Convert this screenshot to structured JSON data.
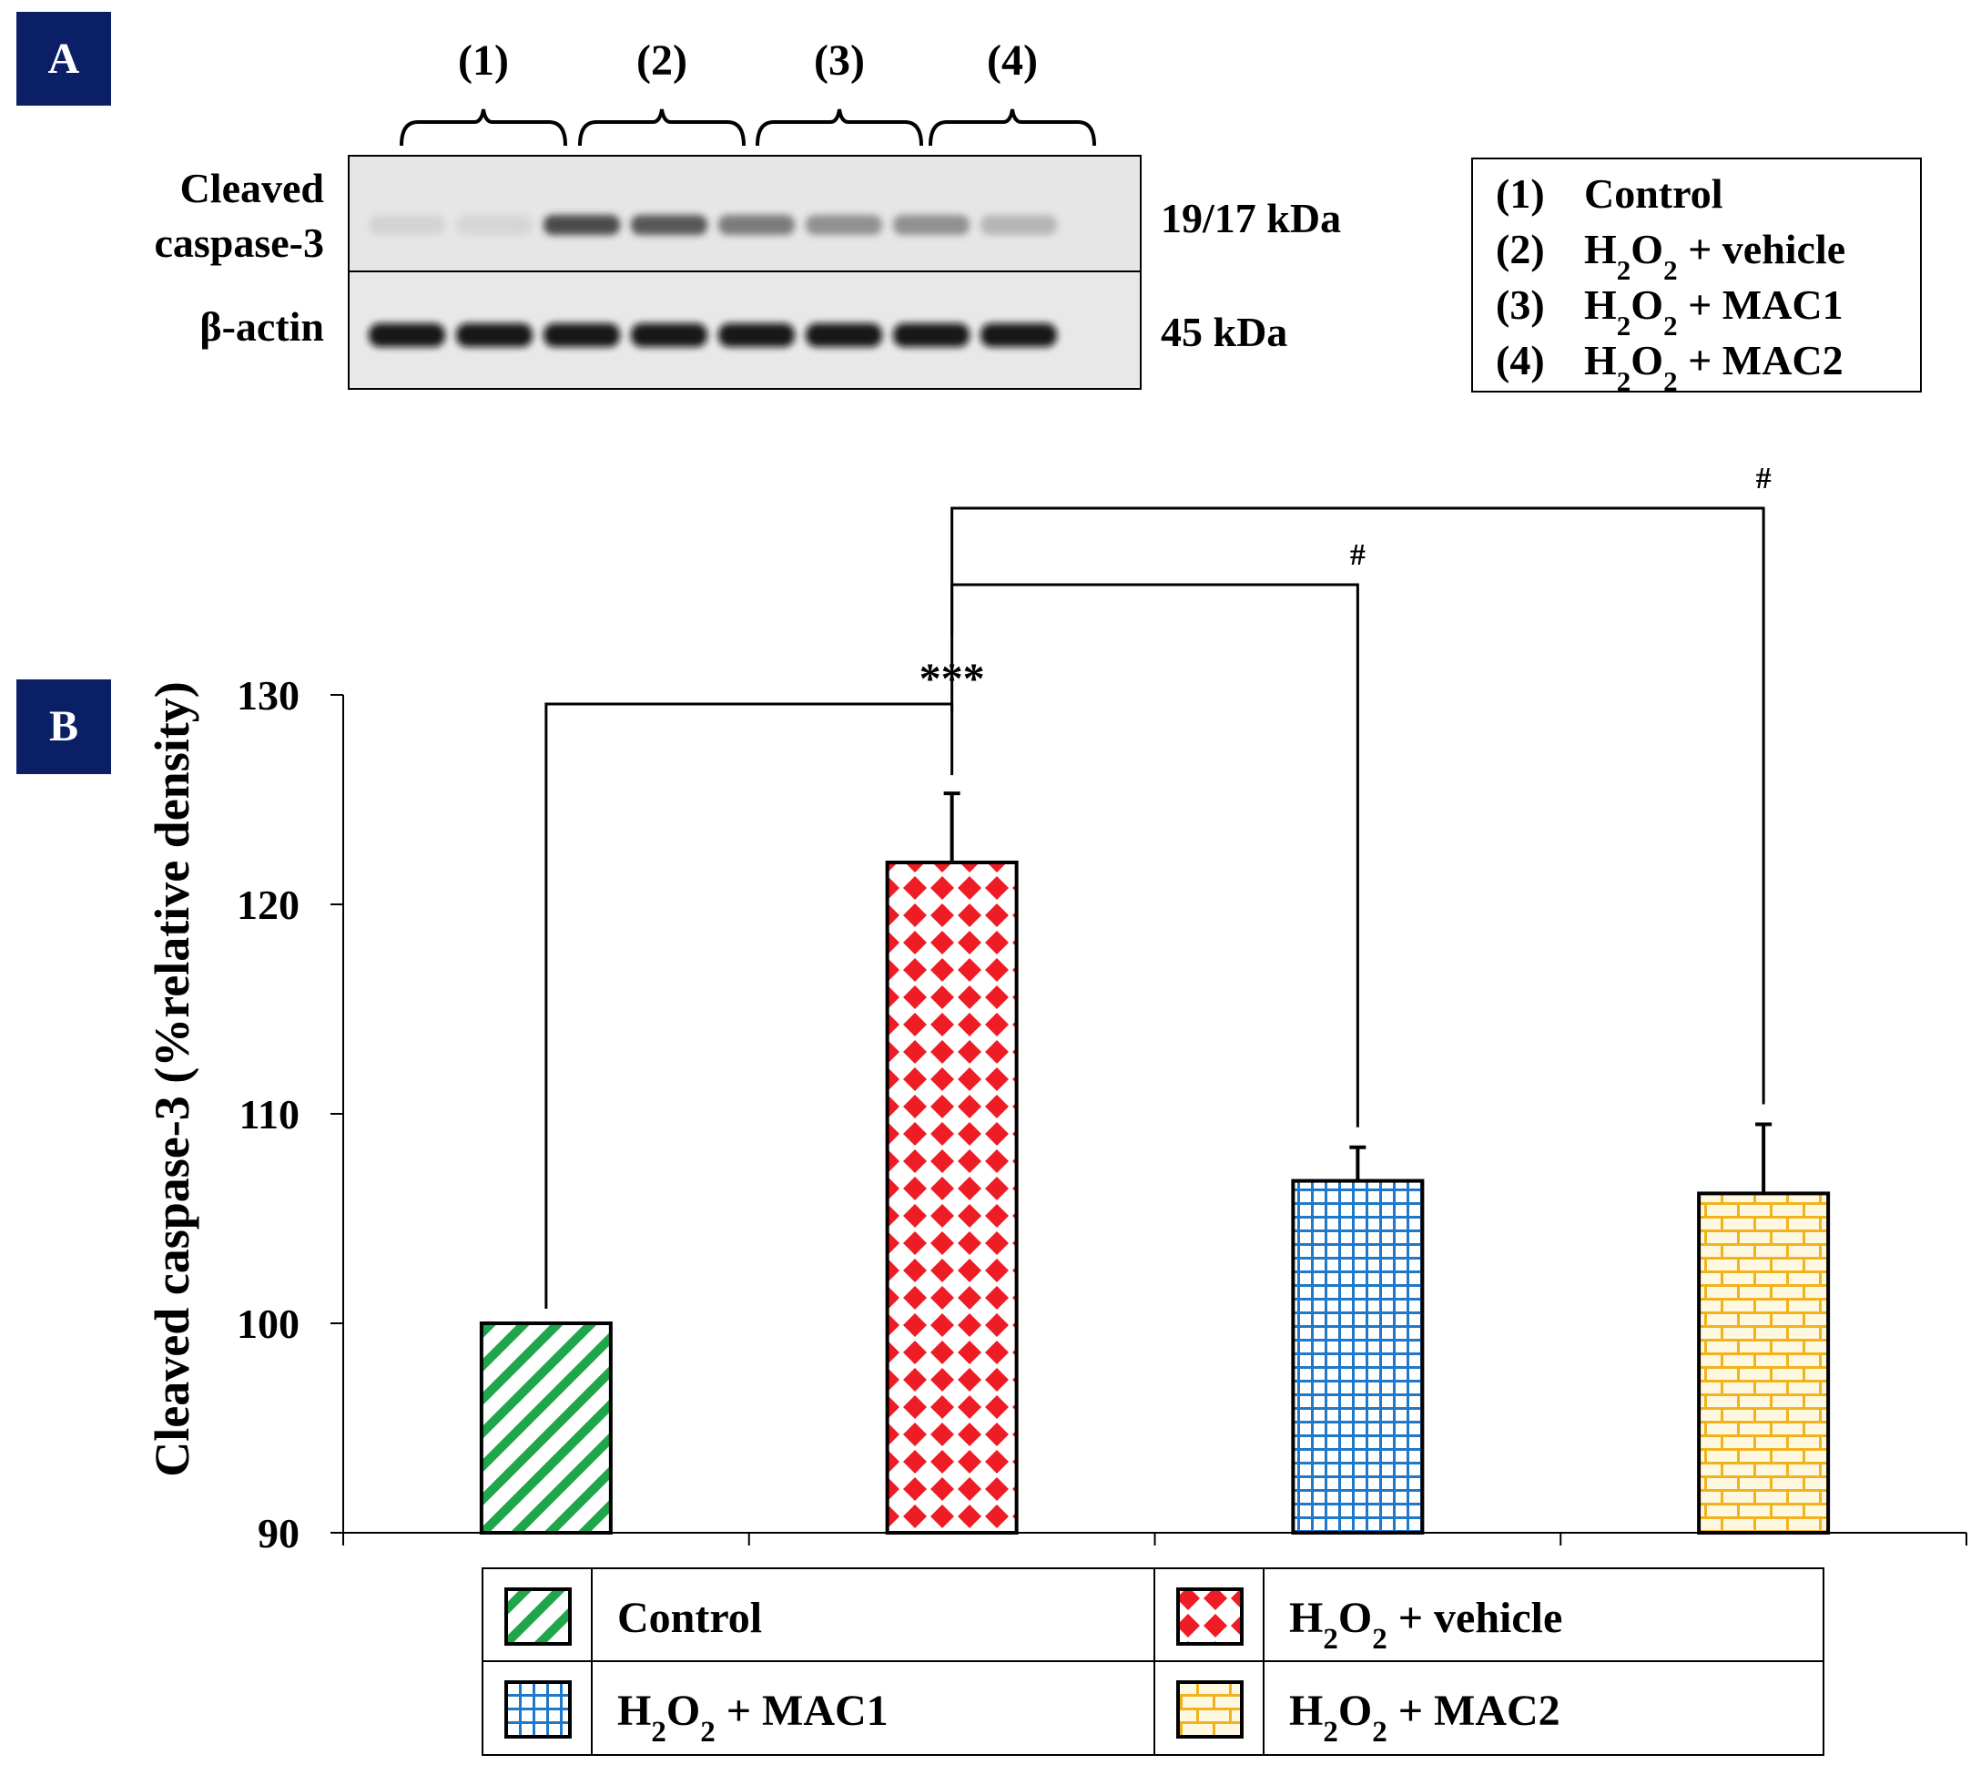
{
  "panel_a": {
    "panel_label": "A",
    "lane_groups": [
      "(1)",
      "(2)",
      "(3)",
      "(4)"
    ],
    "row_labels": {
      "caspase_line1": "Cleaved",
      "caspase_line2": "caspase-3",
      "actin": "β-actin"
    },
    "band_sizes": {
      "caspase": "19/17 kDa",
      "actin": "45 kDa"
    },
    "caspase_band_intensity": [
      0.12,
      0.1,
      0.85,
      0.8,
      0.65,
      0.55,
      0.55,
      0.35
    ],
    "actin_band_intensity": [
      1.0,
      0.95,
      1.0,
      1.0,
      1.0,
      1.0,
      0.95,
      0.95
    ],
    "legend": [
      {
        "num": "(1)",
        "pre": "Control",
        "sub1": "",
        "mid": "",
        "sub2": "",
        "post": ""
      },
      {
        "num": "(2)",
        "pre": "H",
        "sub1": "2",
        "mid": "O",
        "sub2": "2",
        "post": " + vehicle"
      },
      {
        "num": "(3)",
        "pre": "H",
        "sub1": "2",
        "mid": "O",
        "sub2": "2",
        "post": " + MAC1"
      },
      {
        "num": "(4)",
        "pre": "H",
        "sub1": "2",
        "mid": "O",
        "sub2": "2",
        "post": " + MAC2"
      }
    ]
  },
  "panel_b": {
    "panel_label": "B"
  },
  "chart_data": {
    "type": "bar",
    "title": "",
    "xlabel": "",
    "ylabel": "Cleaved caspase-3 (%relative density)",
    "ylim": [
      90,
      130
    ],
    "yticks": [
      90,
      100,
      110,
      120,
      130
    ],
    "categories": [
      "Control",
      "H2O2 + vehicle",
      "H2O2 + MAC1",
      "H2O2 + MAC2"
    ],
    "values": [
      100,
      122,
      106.8,
      106.2
    ],
    "errors": [
      0,
      3.3,
      1.6,
      3.3
    ],
    "colors": [
      "#1fa64a",
      "#ee1c24",
      "#1f78c8",
      "#f2b21c"
    ],
    "significance": [
      {
        "from": 0,
        "to": 1,
        "label": "***"
      },
      {
        "from": 1,
        "to": 2,
        "label": "#"
      },
      {
        "from": 1,
        "to": 3,
        "label": "#"
      }
    ],
    "legend": [
      {
        "pre": "Control",
        "sub1": "",
        "mid": "",
        "sub2": "",
        "post": ""
      },
      {
        "pre": "H",
        "sub1": "2",
        "mid": "O",
        "sub2": "2",
        "post": " + vehicle"
      },
      {
        "pre": "H",
        "sub1": "2",
        "mid": "O",
        "sub2": "2",
        "post": " + MAC1"
      },
      {
        "pre": "H",
        "sub1": "2",
        "mid": "O",
        "sub2": "2",
        "post": " + MAC2"
      }
    ]
  }
}
